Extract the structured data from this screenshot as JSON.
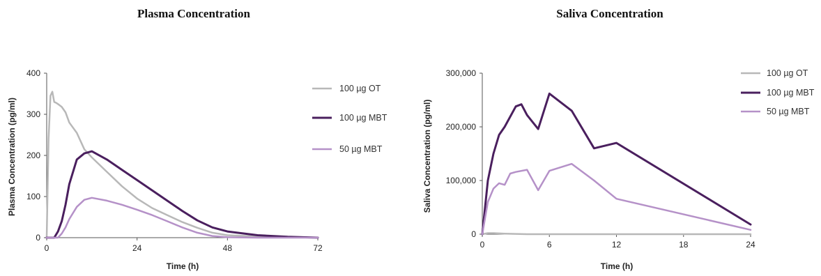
{
  "chart_data": [
    {
      "type": "line",
      "title": "Plasma Concentration",
      "xlabel": "Time (h)",
      "ylabel": "Plasma Concentration (pg/ml)",
      "xlim": [
        0,
        72
      ],
      "ylim": [
        0,
        400
      ],
      "xticks": [
        0,
        24,
        48,
        72
      ],
      "yticks": [
        0,
        100,
        200,
        300,
        400
      ],
      "xtick_labels": [
        "0",
        "24",
        "48",
        "72"
      ],
      "ytick_labels": [
        "0",
        "100",
        "200",
        "300",
        "400"
      ],
      "grid": false,
      "legend_position": "right",
      "series": [
        {
          "name": "100 µg OT",
          "color": "#b8b8b8",
          "width": 2.5,
          "x": [
            0,
            0.5,
            1,
            1.5,
            2,
            2.5,
            3,
            4,
            5,
            6,
            8,
            10,
            12,
            16,
            20,
            24,
            28,
            32,
            36,
            40,
            44,
            48,
            56,
            64,
            72
          ],
          "y": [
            0,
            240,
            345,
            355,
            330,
            328,
            325,
            318,
            305,
            280,
            255,
            215,
            195,
            160,
            125,
            95,
            72,
            55,
            38,
            24,
            12,
            6,
            3,
            1,
            0
          ]
        },
        {
          "name": "100 µg MBT",
          "color": "#4a1f5e",
          "width": 3,
          "x": [
            0,
            2,
            3,
            4,
            5,
            6,
            8,
            10,
            12,
            16,
            20,
            24,
            28,
            32,
            36,
            40,
            44,
            48,
            56,
            64,
            72
          ],
          "y": [
            0,
            0,
            15,
            40,
            80,
            130,
            190,
            205,
            210,
            190,
            165,
            140,
            115,
            90,
            65,
            42,
            25,
            15,
            6,
            2,
            0
          ]
        },
        {
          "name": "50 µg MBT",
          "color": "#b591c8",
          "width": 2.5,
          "x": [
            0,
            3,
            4,
            5,
            6,
            8,
            10,
            12,
            16,
            20,
            24,
            28,
            32,
            36,
            40,
            44,
            48,
            56,
            72
          ],
          "y": [
            0,
            0,
            10,
            25,
            45,
            75,
            92,
            97,
            90,
            80,
            68,
            55,
            40,
            25,
            12,
            4,
            1,
            0,
            0
          ]
        }
      ]
    },
    {
      "type": "line",
      "title": "Saliva Concentration",
      "xlabel": "Time (h)",
      "ylabel": "Saliva Concentration (pg/ml)",
      "xlim": [
        0,
        24
      ],
      "ylim": [
        0,
        300000
      ],
      "xticks": [
        0,
        6,
        12,
        18,
        24
      ],
      "yticks": [
        0,
        100000,
        200000,
        300000
      ],
      "xtick_labels": [
        "0",
        "6",
        "12",
        "18",
        "24"
      ],
      "ytick_labels": [
        "0",
        "100,000",
        "200,000",
        "300,000"
      ],
      "grid": false,
      "legend_position": "right",
      "series": [
        {
          "name": "100 µg OT",
          "color": "#b8b8b8",
          "width": 2.5,
          "x": [
            0,
            0.5,
            1,
            2,
            4,
            6,
            12,
            24
          ],
          "y": [
            0,
            2000,
            2000,
            1000,
            0,
            0,
            0,
            0
          ]
        },
        {
          "name": "100 µg MBT",
          "color": "#4a1f5e",
          "width": 3,
          "x": [
            0,
            0.5,
            1,
            1.5,
            2,
            3,
            3.5,
            4,
            5,
            6,
            8,
            10,
            12,
            24
          ],
          "y": [
            0,
            100000,
            150000,
            185000,
            200000,
            238000,
            242000,
            222000,
            196000,
            262000,
            230000,
            160000,
            170000,
            18000
          ]
        },
        {
          "name": "50 µg MBT",
          "color": "#b591c8",
          "width": 2.5,
          "x": [
            0,
            0.5,
            1,
            1.5,
            2,
            2.5,
            3,
            4,
            5,
            6,
            8,
            10,
            12,
            24
          ],
          "y": [
            0,
            60000,
            85000,
            95000,
            92000,
            113000,
            116000,
            120000,
            82000,
            118000,
            131000,
            100000,
            66000,
            8000
          ]
        }
      ]
    }
  ]
}
